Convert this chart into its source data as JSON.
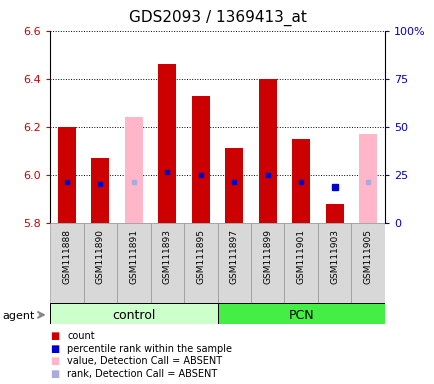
{
  "title": "GDS2093 / 1369413_at",
  "samples": [
    "GSM111888",
    "GSM111890",
    "GSM111891",
    "GSM111893",
    "GSM111895",
    "GSM111897",
    "GSM111899",
    "GSM111901",
    "GSM111903",
    "GSM111905"
  ],
  "ylim_left": [
    5.8,
    6.6
  ],
  "ylim_right": [
    0,
    100
  ],
  "yticks_left": [
    5.8,
    6.0,
    6.2,
    6.4,
    6.6
  ],
  "yticks_right": [
    0,
    25,
    50,
    75,
    100
  ],
  "red_bar_values": [
    6.2,
    6.07,
    null,
    6.46,
    6.33,
    6.11,
    6.4,
    6.15,
    5.88,
    null
  ],
  "pink_bar_values": [
    null,
    null,
    6.24,
    null,
    null,
    null,
    null,
    null,
    null,
    6.17
  ],
  "blue_dot_values": [
    5.97,
    5.96,
    null,
    6.01,
    6.0,
    5.97,
    6.0,
    5.97,
    null,
    null
  ],
  "lavender_dot_values": [
    null,
    null,
    5.97,
    null,
    null,
    null,
    null,
    null,
    null,
    5.97
  ],
  "blue_dot_special": [
    [
      8,
      5.95
    ]
  ],
  "bar_bottom": 5.8,
  "bar_width": 0.55,
  "red_color": "#cc0000",
  "pink_color": "#ffb6c8",
  "blue_color": "#0000cc",
  "lavender_color": "#aaaadd",
  "control_color": "#ccffcc",
  "pcn_color": "#44ee44",
  "tick_color_left": "#cc0000",
  "tick_color_right": "#0000cc",
  "group_label_fontsize": 9,
  "title_fontsize": 11,
  "legend_items": [
    [
      "#cc0000",
      "count"
    ],
    [
      "#0000cc",
      "percentile rank within the sample"
    ],
    [
      "#ffb6c8",
      "value, Detection Call = ABSENT"
    ],
    [
      "#aaaadd",
      "rank, Detection Call = ABSENT"
    ]
  ]
}
